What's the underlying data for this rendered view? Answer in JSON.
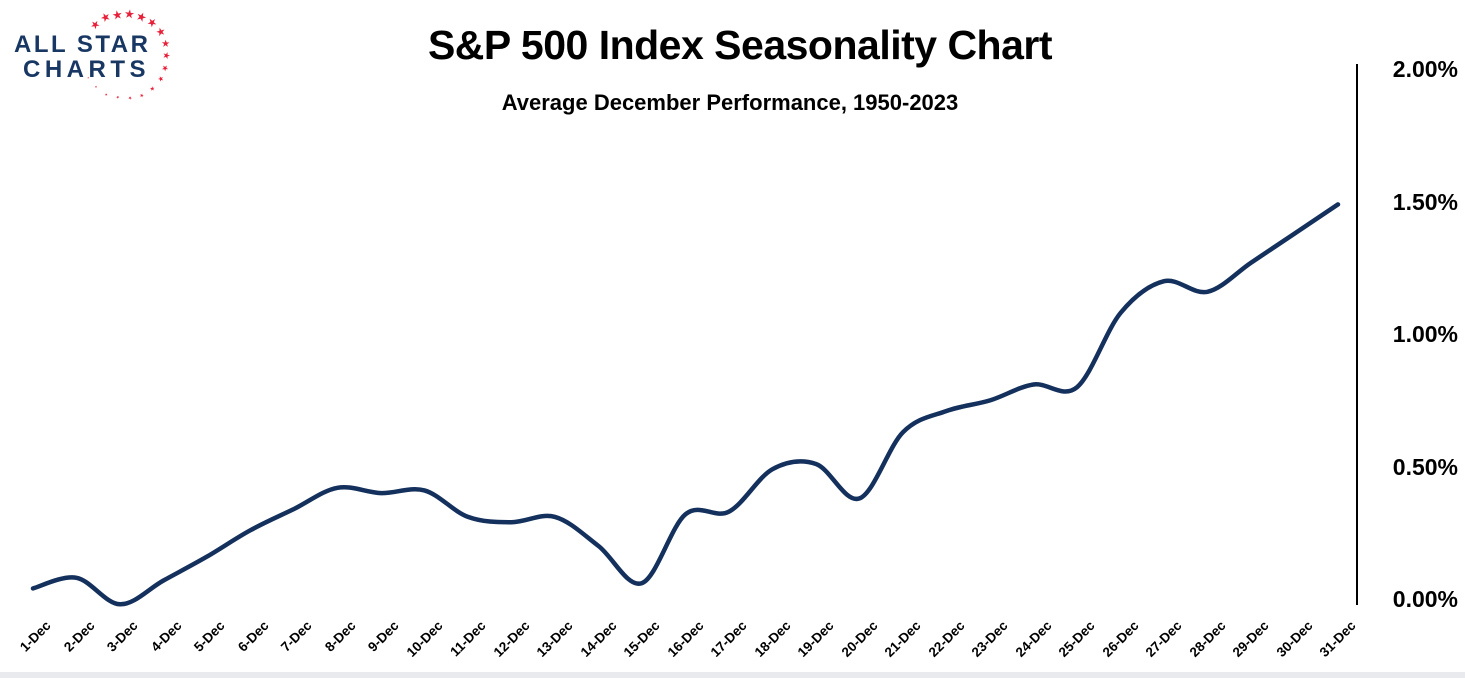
{
  "logo": {
    "line1": "ALL STAR",
    "line2": "CHARTS",
    "text_color": "#183763",
    "star_color": "#E8213A"
  },
  "header": {
    "title": "S&P 500 Index Seasonality Chart",
    "subtitle": "Average December Performance, 1950-2023"
  },
  "chart_data": {
    "type": "line",
    "title": "S&P 500 Index Seasonality Chart",
    "subtitle": "Average December Performance, 1950-2023",
    "x_labels": [
      "1-Dec",
      "2-Dec",
      "3-Dec",
      "4-Dec",
      "5-Dec",
      "6-Dec",
      "7-Dec",
      "8-Dec",
      "9-Dec",
      "10-Dec",
      "11-Dec",
      "12-Dec",
      "13-Dec",
      "14-Dec",
      "15-Dec",
      "16-Dec",
      "17-Dec",
      "18-Dec",
      "19-Dec",
      "20-Dec",
      "21-Dec",
      "22-Dec",
      "23-Dec",
      "24-Dec",
      "25-Dec",
      "26-Dec",
      "27-Dec",
      "28-Dec",
      "29-Dec",
      "30-Dec",
      "31-Dec"
    ],
    "series": [
      {
        "name": "Average December Performance, 1950-2023",
        "values_pct": [
          0.04,
          0.08,
          -0.02,
          0.07,
          0.16,
          0.26,
          0.34,
          0.42,
          0.4,
          0.41,
          0.31,
          0.29,
          0.31,
          0.2,
          0.06,
          0.32,
          0.33,
          0.49,
          0.51,
          0.38,
          0.63,
          0.71,
          0.75,
          0.81,
          0.8,
          1.08,
          1.2,
          1.16,
          1.27,
          1.38,
          1.49
        ]
      }
    ],
    "y_ticks": [
      "0.00%",
      "0.50%",
      "1.00%",
      "1.50%",
      "2.00%"
    ],
    "ylim": [
      0,
      2
    ],
    "y_axis_side": "right",
    "grid": false,
    "smooth": true,
    "line_color": "#14305C"
  }
}
